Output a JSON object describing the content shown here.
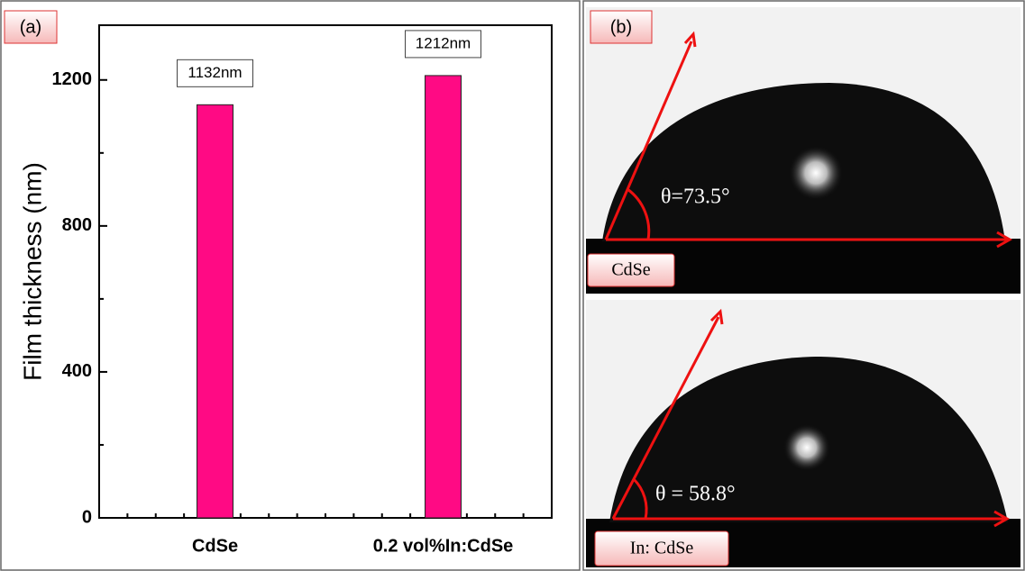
{
  "chart_data": {
    "type": "bar",
    "panel_label": "(a)",
    "categories": [
      "CdSe",
      "0.2 vol%In:CdSe"
    ],
    "values": [
      1132,
      1212
    ],
    "value_labels": [
      "1132nm",
      "1212nm"
    ],
    "color": "#ff0a84",
    "y_label": "Film thickness (nm)",
    "ylim": [
      0,
      1350
    ],
    "yticks": [
      0,
      400,
      800,
      1200
    ],
    "minor_yticks": [
      200,
      600,
      1000
    ]
  },
  "panel_b": {
    "label": "(b)",
    "images": [
      {
        "angle_label": "θ=73.5°",
        "sample": "CdSe"
      },
      {
        "angle_label": "θ = 58.8°",
        "sample": "In: CdSe"
      }
    ]
  }
}
